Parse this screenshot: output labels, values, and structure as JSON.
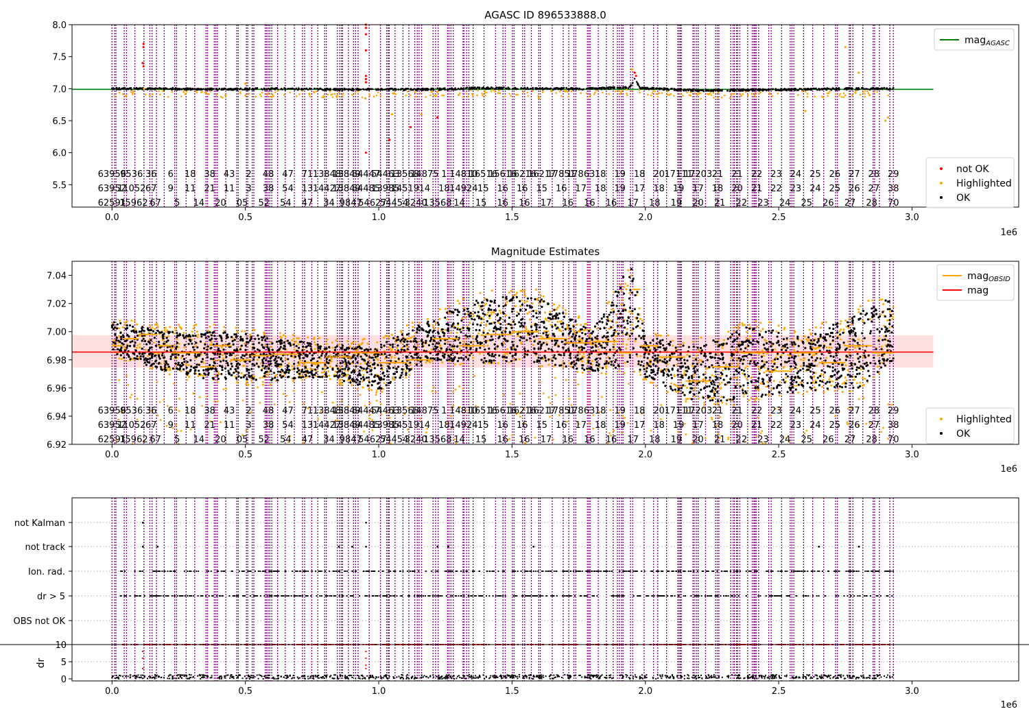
{
  "figure": {
    "xaxis_scale_label": "1e6",
    "xticks": [
      0.0,
      0.5,
      1.0,
      1.5,
      2.0,
      2.5,
      3.0
    ],
    "xlim": [
      -0.15,
      3.4
    ],
    "obsid_lines": {
      "color": "#800080",
      "note": "dense dotted purple vertical markers between 0 and 2.93 (x1e6)",
      "x_range": [
        0.0,
        2.93
      ]
    },
    "obsid_label_rows": [
      [
        "63956",
        "9536",
        "36",
        "6",
        "18",
        "38",
        "43",
        "2",
        "48",
        "47",
        "71",
        "13848",
        "13849",
        "54447",
        "54463",
        "13568",
        "14875",
        "1",
        "14810",
        "16516",
        "15616",
        "16216",
        "16217",
        "17851",
        "17863",
        "18",
        "19",
        "18",
        "20",
        "17111",
        "17203",
        "21",
        "21",
        "22",
        "23",
        "24",
        "25",
        "26",
        "27",
        "28",
        "29"
      ],
      [
        "63952",
        "11052",
        "67",
        "9",
        "11",
        "21",
        "11",
        "3",
        "38",
        "54",
        "13",
        "14427",
        "13849",
        "54485",
        "13985",
        "14519",
        "14",
        "18",
        "14924",
        "15",
        "16",
        "16",
        "15",
        "16",
        "17",
        "18",
        "19",
        "17",
        "18",
        "19",
        "17",
        "18",
        "20",
        "21",
        "22",
        "23",
        "24",
        "25",
        "26",
        "27",
        "38"
      ],
      [
        "62591",
        "15962",
        "67",
        "5",
        "14",
        "20",
        "05",
        "52",
        "54",
        "47",
        "34",
        "9847",
        "54627",
        "54454",
        "3240",
        "13568",
        "14",
        "15",
        "16",
        "16",
        "17",
        "16",
        "16",
        "16",
        "17",
        "18",
        "19",
        "20",
        "21",
        "22",
        "23",
        "24",
        "25",
        "26",
        "27",
        "28",
        "70"
      ]
    ]
  },
  "chart_data": [
    {
      "type": "scatter",
      "title": "AGASC ID 896533888.0",
      "xlabel": "",
      "ylabel": "",
      "ylim": [
        5.15,
        8.0
      ],
      "yticks": [
        5.5,
        6.0,
        6.5,
        7.0,
        7.5,
        8.0
      ],
      "grid": false,
      "reference_lines": [
        {
          "name": "mag_AGASC",
          "y": 6.99,
          "x_range": [
            -0.15,
            3.08
          ],
          "color": "#008000"
        }
      ],
      "series": [
        {
          "name": "not OK",
          "color": "#ff0000",
          "points": [
            [
              0.118,
              7.7
            ],
            [
              0.118,
              7.65
            ],
            [
              0.115,
              7.4
            ],
            [
              0.118,
              7.35
            ],
            [
              0.952,
              8.0
            ],
            [
              0.952,
              7.95
            ],
            [
              0.952,
              7.85
            ],
            [
              0.952,
              7.6
            ],
            [
              0.952,
              7.2
            ],
            [
              0.952,
              7.15
            ],
            [
              0.952,
              7.1
            ],
            [
              0.952,
              6.0
            ],
            [
              1.96,
              7.25
            ],
            [
              1.965,
              7.2
            ],
            [
              1.12,
              6.4
            ],
            [
              1.22,
              6.55
            ],
            [
              1.04,
              6.2
            ]
          ]
        },
        {
          "name": "Highlighted",
          "color": "#ffa500",
          "points": [
            [
              0.12,
              7.0
            ],
            [
              0.35,
              6.94
            ],
            [
              0.5,
              7.08
            ],
            [
              0.74,
              6.92
            ],
            [
              0.95,
              6.85
            ],
            [
              1.05,
              6.6
            ],
            [
              1.16,
              6.6
            ],
            [
              1.22,
              6.95
            ],
            [
              1.3,
              6.9
            ],
            [
              1.45,
              6.93
            ],
            [
              1.6,
              6.85
            ],
            [
              1.7,
              6.96
            ],
            [
              1.95,
              7.3
            ],
            [
              2.05,
              6.93
            ],
            [
              2.2,
              6.92
            ],
            [
              2.4,
              6.92
            ],
            [
              2.6,
              6.65
            ],
            [
              2.75,
              7.65
            ],
            [
              2.8,
              7.25
            ],
            [
              2.84,
              6.9
            ],
            [
              2.9,
              6.5
            ],
            [
              2.91,
              6.55
            ]
          ]
        },
        {
          "name": "OK",
          "color": "#000000",
          "profile": [
            [
              0.0,
              7.0
            ],
            [
              0.2,
              7.0
            ],
            [
              0.4,
              6.99
            ],
            [
              0.6,
              7.0
            ],
            [
              0.8,
              6.99
            ],
            [
              1.0,
              6.99
            ],
            [
              1.2,
              6.99
            ],
            [
              1.4,
              7.01
            ],
            [
              1.6,
              7.0
            ],
            [
              1.8,
              7.0
            ],
            [
              1.94,
              7.02
            ],
            [
              1.96,
              7.15
            ],
            [
              1.98,
              7.01
            ],
            [
              2.2,
              6.97
            ],
            [
              2.4,
              6.98
            ],
            [
              2.6,
              6.99
            ],
            [
              2.8,
              7.0
            ],
            [
              2.93,
              7.0
            ]
          ]
        }
      ],
      "legend": {
        "position": "lower-right",
        "entries": [
          "not OK",
          "Highlighted",
          "OK"
        ]
      },
      "legend2": {
        "position": "upper-right",
        "entries": [
          "mag_AGASC"
        ]
      }
    },
    {
      "type": "scatter",
      "title": "Magnitude Estimates",
      "xlabel": "",
      "ylabel": "",
      "ylim": [
        6.92,
        7.05
      ],
      "yticks": [
        6.92,
        6.94,
        6.96,
        6.98,
        7.0,
        7.02,
        7.04
      ],
      "grid": false,
      "reference_lines": [
        {
          "name": "mag",
          "y": 6.9855,
          "band": [
            6.9745,
            6.9975
          ],
          "x_range": [
            -0.15,
            3.08
          ],
          "color": "#ff0000"
        }
      ],
      "series": [
        {
          "name": "mag_OBSID",
          "color": "#ffa500",
          "steps": [
            [
              0.0,
              6.99
            ],
            [
              0.04,
              6.995
            ],
            [
              0.1,
              6.998
            ],
            [
              0.17,
              6.99
            ],
            [
              0.22,
              6.985
            ],
            [
              0.28,
              6.985
            ],
            [
              0.33,
              6.975
            ],
            [
              0.38,
              6.99
            ],
            [
              0.45,
              6.98
            ],
            [
              0.52,
              6.983
            ],
            [
              0.6,
              6.984
            ],
            [
              0.7,
              6.978
            ],
            [
              0.8,
              6.982
            ],
            [
              0.9,
              6.985
            ],
            [
              1.0,
              6.978
            ],
            [
              1.1,
              6.98
            ],
            [
              1.2,
              6.995
            ],
            [
              1.3,
              6.99
            ],
            [
              1.4,
              6.998
            ],
            [
              1.5,
              7.0
            ],
            [
              1.6,
              6.995
            ],
            [
              1.7,
              6.992
            ],
            [
              1.8,
              6.993
            ],
            [
              1.9,
              6.985
            ],
            [
              1.95,
              7.03
            ],
            [
              1.98,
              6.99
            ],
            [
              2.05,
              6.982
            ],
            [
              2.15,
              6.965
            ],
            [
              2.25,
              6.975
            ],
            [
              2.35,
              6.985
            ],
            [
              2.45,
              6.972
            ],
            [
              2.55,
              6.985
            ],
            [
              2.65,
              6.978
            ],
            [
              2.75,
              6.99
            ],
            [
              2.85,
              6.985
            ],
            [
              2.93,
              7.0
            ]
          ]
        },
        {
          "name": "Highlighted",
          "color": "#ffa500",
          "band": [
            [
              0.0,
              6.982,
              7.01
            ],
            [
              0.2,
              6.97,
              7.005
            ],
            [
              0.4,
              6.962,
              7.005
            ],
            [
              0.6,
              6.962,
              7.0
            ],
            [
              0.8,
              6.965,
              6.995
            ],
            [
              1.0,
              6.955,
              6.995
            ],
            [
              1.2,
              6.978,
              7.015
            ],
            [
              1.4,
              6.975,
              7.03
            ],
            [
              1.6,
              6.975,
              7.03
            ],
            [
              1.8,
              6.97,
              7.005
            ],
            [
              1.95,
              6.97,
              7.05
            ],
            [
              2.0,
              6.965,
              7.0
            ],
            [
              2.2,
              6.945,
              6.995
            ],
            [
              2.4,
              6.95,
              7.01
            ],
            [
              2.6,
              6.955,
              7.0
            ],
            [
              2.8,
              6.958,
              7.02
            ],
            [
              2.93,
              6.975,
              7.03
            ]
          ]
        },
        {
          "name": "OK",
          "color": "#000000",
          "band": [
            [
              0.0,
              6.984,
              7.008
            ],
            [
              0.2,
              6.972,
              7.0
            ],
            [
              0.4,
              6.965,
              7.0
            ],
            [
              0.6,
              6.965,
              6.997
            ],
            [
              0.8,
              6.968,
              6.99
            ],
            [
              1.0,
              6.958,
              6.99
            ],
            [
              1.2,
              6.98,
              7.01
            ],
            [
              1.4,
              6.978,
              7.025
            ],
            [
              1.6,
              6.978,
              7.025
            ],
            [
              1.8,
              6.972,
              7.0
            ],
            [
              1.95,
              6.975,
              7.05
            ],
            [
              2.0,
              6.968,
              6.997
            ],
            [
              2.2,
              6.948,
              6.99
            ],
            [
              2.4,
              6.953,
              7.005
            ],
            [
              2.6,
              6.958,
              6.995
            ],
            [
              2.8,
              6.96,
              7.015
            ],
            [
              2.93,
              6.978,
              7.025
            ]
          ]
        }
      ],
      "legend": {
        "position": "lower-right",
        "entries": [
          "Highlighted",
          "OK"
        ]
      },
      "legend2": {
        "position": "upper-right",
        "entries": [
          "mag_OBSID",
          "mag"
        ]
      }
    },
    {
      "type": "scatter",
      "title": "",
      "categories": [
        "not Kalman",
        "not track",
        "Ion. rad.",
        "dr > 5",
        "OBS not OK"
      ],
      "flag_series": [
        {
          "name": "not Kalman",
          "x": [
            0.115,
            0.952
          ]
        },
        {
          "name": "not track",
          "x": [
            0.115,
            0.17,
            0.85,
            0.9,
            0.952,
            1.22,
            1.26,
            1.58,
            2.65,
            2.8
          ]
        },
        {
          "name": "Ion. rad.",
          "x_range": [
            0.03,
            2.93
          ],
          "density": "dense"
        },
        {
          "name": "dr > 5",
          "x_range": [
            0.03,
            2.93
          ],
          "density": "dense"
        },
        {
          "name": "OBS not OK",
          "x": []
        }
      ],
      "dr_panel": {
        "ylabel": "dr",
        "ylim": [
          0,
          10
        ],
        "yticks": [
          0,
          5,
          10
        ],
        "cap_line": 10,
        "series": [
          {
            "name": "dr capped (>=10)",
            "color": "#ff0000",
            "y": 10,
            "x_range": [
              0.03,
              2.93
            ]
          },
          {
            "name": "dr",
            "color": "#000000",
            "y_typical": 0.5
          }
        ]
      }
    }
  ]
}
